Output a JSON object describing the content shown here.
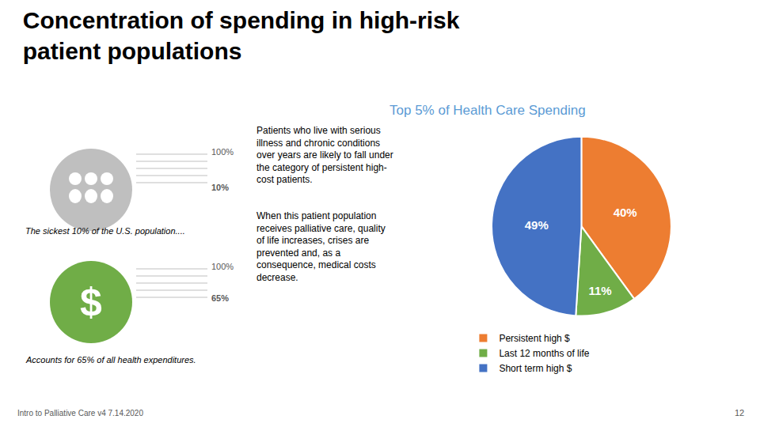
{
  "chart_data": {
    "type": "pie",
    "title": "Concentration of spending in high-risk\npatient populations",
    "subtitle": "Top 5% of Health Care Spending",
    "categories": [
      "Persistent high $",
      "Last 12 months of life",
      "Short term high $"
    ],
    "values": [
      40,
      11,
      49
    ],
    "value_labels": [
      "40%",
      "11%",
      "49%"
    ],
    "colors": [
      "#ed7d31",
      "#70ad47",
      "#4472c4"
    ],
    "data_labels": true,
    "legend": "bottom",
    "annotations": [
      "100%",
      "10%",
      "The sickest 10% of the U.S. population....",
      "$",
      "100%",
      "65%",
      "Accounts for 65% of all health expenditures.",
      "Patients who live with serious\nillness and chronic conditions\nover years are likely to fall under\nthe category of persistent high-\ncost patients.",
      "When this patient population\nreceives palliative care, quality\nof life increases, crises are\nprevented and, as a\nconsequence, medical costs\ndecrease.",
      "Intro to Palliative Care v4 7.14.2020",
      "12"
    ]
  }
}
